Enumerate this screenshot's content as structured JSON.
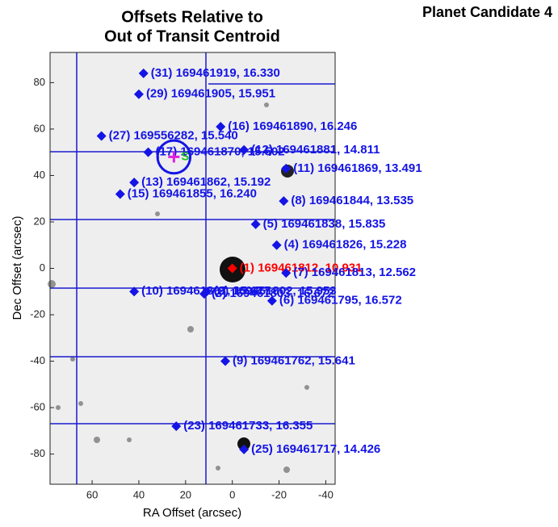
{
  "chart_data": {
    "type": "scatter",
    "title": [
      "Offsets Relative to",
      "Out of Transit Centroid"
    ],
    "page_title": "Planet Candidate 4",
    "x_label": "RA Offset (arcsec)",
    "y_label": "Dec Offset (arcsec)",
    "xlim": [
      78,
      -44
    ],
    "ylim": [
      -93,
      93
    ],
    "xticks": [
      60,
      40,
      20,
      0,
      -20,
      -40
    ],
    "yticks": [
      80,
      60,
      40,
      20,
      0,
      -20,
      -40,
      -60,
      -80
    ],
    "series": [
      {
        "color": "#ff0000",
        "x": [
          0
        ],
        "y": [
          0
        ],
        "labels": [
          "(1) 169461812, 10.931"
        ]
      },
      {
        "color": "#1414e6",
        "x": [
          38,
          40,
          5,
          56,
          36,
          -5,
          -23,
          42,
          48,
          -22,
          -10,
          -19,
          -23,
          42,
          11,
          12,
          -17,
          3,
          24,
          -5
        ],
        "y": [
          84,
          75,
          61,
          57,
          50,
          51,
          43,
          37,
          32,
          29,
          19,
          10,
          -2,
          -10,
          -10,
          -11,
          -14,
          -40,
          -68,
          -78
        ],
        "labels": [
          "(31) 169461919, 16.330",
          "(29) 169461905, 15.951",
          "(16) 169461890, 16.246",
          "(27) 169556282, 15.540",
          "(17) 169461870, 15.502",
          "(12) 169461881, 14.811",
          "(11) 169461869, 13.491",
          "(13) 169461862, 15.192",
          "(15) 169461855, 16.240",
          "(8) 169461844, 13.535",
          "(5) 169461838, 15.835",
          "(4) 169461826, 15.228",
          "(7) 169461813, 12.562",
          "(10) 169461807, 15.677",
          "(2) 169461802, 15.953",
          "(3) 169461803, 16.672",
          "(6) 169461795, 16.572",
          "(9) 169461762, 15.641",
          "(23) 169461733, 16.355",
          "(25) 169461717, 14.426"
        ]
      }
    ],
    "centroid": {
      "x": 25,
      "y": 48,
      "radius": 7,
      "color": "#e020e0",
      "circle_color": "#1414e6"
    },
    "centroid_label": "S",
    "centroid_label_color": "#20c020"
  }
}
